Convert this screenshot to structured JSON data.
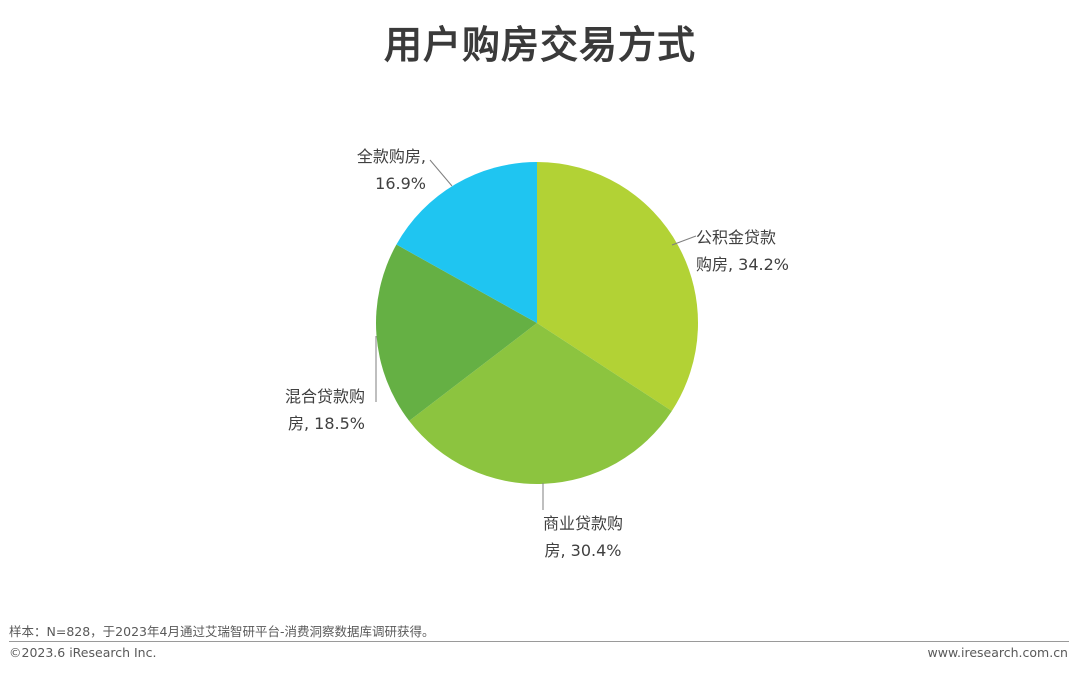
{
  "title": "用户购房交易方式",
  "chart_data": {
    "type": "pie",
    "slices": [
      {
        "label_lines": [
          "公积金贷款",
          "购房, 34.2%"
        ],
        "name": "公积金贷款购房",
        "value": 34.2,
        "color": "#b2d235"
      },
      {
        "label_lines": [
          "商业贷款购",
          "房, 30.4%"
        ],
        "name": "商业贷款购房",
        "value": 30.4,
        "color": "#8cc43f"
      },
      {
        "label_lines": [
          "混合贷款购",
          "房, 18.5%"
        ],
        "name": "混合贷款购房",
        "value": 18.5,
        "color": "#65b044"
      },
      {
        "label_lines": [
          "全款购房,",
          "16.9%"
        ],
        "name": "全款购房",
        "value": 16.9,
        "color": "#1fc5f1"
      }
    ]
  },
  "footer": {
    "source": "样本：N=828，于2023年4月通过艾瑞智研平台-消费洞察数据库调研获得。",
    "copyright": "©2023.6 iResearch Inc.",
    "website": "www.iresearch.com.cn"
  }
}
